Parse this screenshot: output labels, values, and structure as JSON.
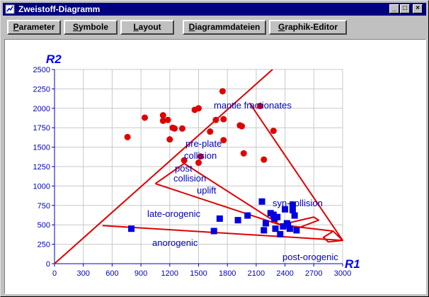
{
  "window": {
    "title": "Zweistoff-Diagramm",
    "controls": {
      "minimize": "_",
      "maximize": "□",
      "close": "×"
    }
  },
  "toolbar": {
    "buttons": [
      {
        "label": "Parameter",
        "accel": "P",
        "rest": "arameter"
      },
      {
        "label": "Symbole",
        "accel": "S",
        "rest": "ymbole"
      },
      {
        "label": "Layout",
        "accel": "L",
        "rest": "ayout"
      },
      {
        "label": "Diagrammdateien",
        "accel": "D",
        "rest": "iagrammdateien"
      },
      {
        "label": "Graphik-Editor",
        "accel": "G",
        "rest": "raphik-Editor"
      }
    ]
  },
  "chart_data": {
    "type": "scatter",
    "xlabel": "R1",
    "ylabel": "R2",
    "xlim": [
      0,
      3000
    ],
    "ylim": [
      0,
      2500
    ],
    "xticks": [
      0,
      300,
      600,
      900,
      1200,
      1500,
      1800,
      2100,
      2400,
      2700,
      3000
    ],
    "yticks": [
      0,
      250,
      500,
      750,
      1000,
      1250,
      1500,
      1750,
      2000,
      2250,
      2500
    ],
    "grid": true,
    "colors": {
      "lines": "#e00000",
      "circles": "#e00000",
      "squares": "#0000e0",
      "text": "#0000c0"
    },
    "series": [
      {
        "marker": "circle",
        "x": [
          760,
          940,
          1130,
          1130,
          1180,
          1200,
          1230,
          1250,
          1330,
          1350,
          1460,
          1500,
          1500,
          1520,
          1620,
          1680,
          1750,
          1760,
          1760,
          1930,
          1950,
          1970,
          2140,
          2180,
          2280
        ],
        "y": [
          1630,
          1880,
          1910,
          1840,
          1850,
          1600,
          1750,
          1740,
          1740,
          1330,
          1980,
          2000,
          1300,
          1380,
          1700,
          1850,
          2220,
          1860,
          1590,
          1780,
          1770,
          1420,
          2030,
          1340,
          1710
        ]
      },
      {
        "marker": "square",
        "x": [
          800,
          1660,
          1720,
          1910,
          2010,
          2160,
          2180,
          2200,
          2250,
          2280,
          2290,
          2300,
          2320,
          2350,
          2380,
          2400,
          2420,
          2430,
          2450,
          2480,
          2480,
          2500,
          2520
        ],
        "y": [
          450,
          420,
          580,
          560,
          620,
          800,
          430,
          520,
          650,
          630,
          580,
          450,
          600,
          380,
          480,
          700,
          520,
          500,
          450,
          760,
          690,
          620,
          430
        ]
      }
    ],
    "regions": [
      "mantle fractionates",
      "pre-plate",
      "collision",
      "post",
      "collision",
      "uplift",
      "syn-collision",
      "late-orogenic",
      "anorogenic",
      "post-orogenic"
    ]
  }
}
